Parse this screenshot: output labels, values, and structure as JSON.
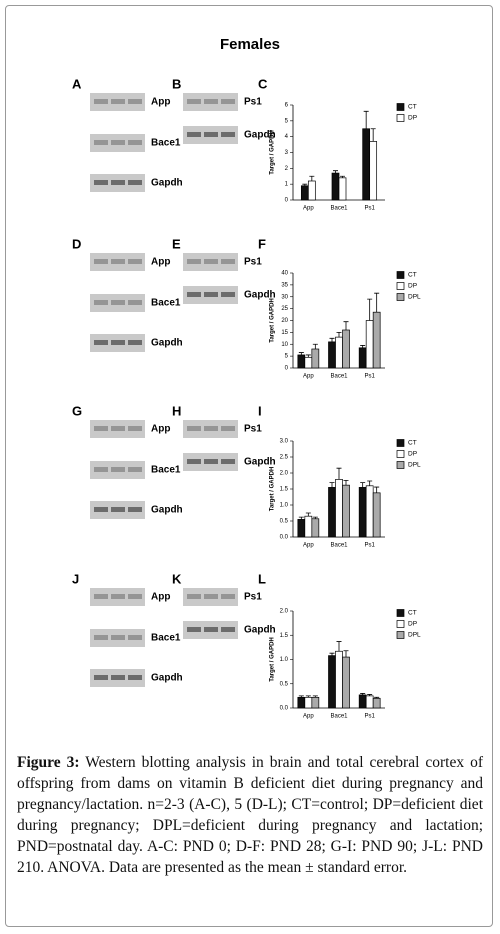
{
  "title": "Females",
  "blot_panels": [
    {
      "letter": "A",
      "labels": [
        "App",
        "Bace1",
        "Gapdh"
      ]
    },
    {
      "letter": "B",
      "labels": [
        "Ps1",
        "Gapdh"
      ]
    },
    {
      "letter": "D",
      "labels": [
        "App",
        "Bace1",
        "Gapdh"
      ]
    },
    {
      "letter": "E",
      "labels": [
        "Ps1",
        "Gapdh"
      ]
    },
    {
      "letter": "G",
      "labels": [
        "App",
        "Bace1",
        "Gapdh"
      ]
    },
    {
      "letter": "H",
      "labels": [
        "Ps1",
        "Gapdh"
      ]
    },
    {
      "letter": "J",
      "labels": [
        "App",
        "Bace1",
        "Gapdh"
      ]
    },
    {
      "letter": "K",
      "labels": [
        "Ps1",
        "Gapdh"
      ]
    }
  ],
  "chart_data": [
    {
      "type": "bar",
      "panel": "C",
      "y_label": "Target / GAPDH",
      "categories": [
        "App",
        "Bace1",
        "Ps1"
      ],
      "ylim": [
        0,
        6
      ],
      "yticks": [
        0,
        1,
        2,
        3,
        4,
        5,
        6
      ],
      "series": [
        {
          "name": "CT",
          "color": "#111111",
          "values": [
            0.9,
            1.7,
            4.5
          ],
          "errors": [
            0.1,
            0.15,
            1.1
          ]
        },
        {
          "name": "DP",
          "color": "#ffffff",
          "values": [
            1.2,
            1.4,
            3.7
          ],
          "errors": [
            0.3,
            0.1,
            0.8
          ]
        }
      ]
    },
    {
      "type": "bar",
      "panel": "F",
      "y_label": "Target / GAPDH",
      "categories": [
        "App",
        "Bace1",
        "Ps1"
      ],
      "ylim": [
        0,
        40
      ],
      "yticks": [
        0,
        5,
        10,
        15,
        20,
        25,
        30,
        35,
        40
      ],
      "series": [
        {
          "name": "CT",
          "color": "#111111",
          "values": [
            5.5,
            11,
            8.5
          ],
          "errors": [
            1,
            1.5,
            1
          ]
        },
        {
          "name": "DP",
          "color": "#ffffff",
          "values": [
            4.5,
            13,
            20
          ],
          "errors": [
            1,
            2,
            9
          ]
        },
        {
          "name": "DPL",
          "color": "#aaaaaa",
          "values": [
            8,
            16,
            23.5
          ],
          "errors": [
            2,
            3.5,
            8
          ]
        }
      ]
    },
    {
      "type": "bar",
      "panel": "I",
      "y_label": "Target / GAPDH",
      "categories": [
        "App",
        "Bace1",
        "Ps1"
      ],
      "ylim": [
        0,
        3
      ],
      "yticks": [
        {
          "value": 0,
          "label": "0.0"
        },
        0.5,
        {
          "value": 1,
          "label": "1.0"
        },
        1.5,
        {
          "value": 2,
          "label": "2.0"
        },
        2.5,
        {
          "value": 3,
          "label": "3.0"
        }
      ],
      "series": [
        {
          "name": "CT",
          "color": "#111111",
          "values": [
            0.55,
            1.55,
            1.55
          ],
          "errors": [
            0.07,
            0.15,
            0.15
          ]
        },
        {
          "name": "DP",
          "color": "#ffffff",
          "values": [
            0.65,
            1.8,
            1.6
          ],
          "errors": [
            0.1,
            0.35,
            0.15
          ]
        },
        {
          "name": "DPL",
          "color": "#aaaaaa",
          "values": [
            0.57,
            1.62,
            1.38
          ],
          "errors": [
            0.05,
            0.15,
            0.18
          ]
        }
      ]
    },
    {
      "type": "bar",
      "panel": "L",
      "y_label": "Target / GAPDH",
      "categories": [
        "App",
        "Bace1",
        "Ps1"
      ],
      "ylim": [
        0,
        2
      ],
      "yticks": [
        {
          "value": 0,
          "label": "0.0"
        },
        0.5,
        {
          "value": 1,
          "label": "1.0"
        },
        1.5,
        {
          "value": 2,
          "label": "2.0"
        }
      ],
      "series": [
        {
          "name": "CT",
          "color": "#111111",
          "values": [
            0.22,
            1.08,
            0.27
          ],
          "errors": [
            0.03,
            0.05,
            0.03
          ]
        },
        {
          "name": "DP",
          "color": "#ffffff",
          "values": [
            0.22,
            1.17,
            0.25
          ],
          "errors": [
            0.03,
            0.2,
            0.03
          ]
        },
        {
          "name": "DPL",
          "color": "#aaaaaa",
          "values": [
            0.22,
            1.05,
            0.2
          ],
          "errors": [
            0.03,
            0.13,
            0.02
          ]
        }
      ]
    }
  ],
  "caption": {
    "label": "Figure 3:",
    "text": "Western blotting analysis in brain and total cerebral cortex of offspring from dams on vitamin B deficient diet during pregnancy and pregnancy/lactation. n=2-3 (A-C), 5 (D-L); CT=control; DP=deficient diet during pregnancy; DPL=deficient during pregnancy and lactation; PND=postnatal day. A-C: PND 0; D-F: PND 28; G-I: PND 90; J-L: PND 210. ANOVA. Data are presented as the mean ± standard error."
  }
}
